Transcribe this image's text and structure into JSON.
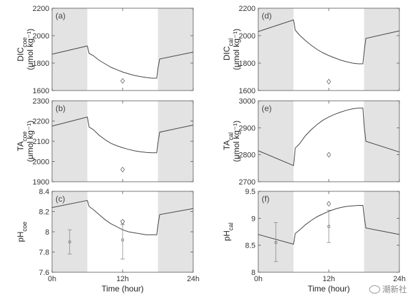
{
  "chart_data": [
    {
      "type": "line",
      "panel": "(a)",
      "ylabel_main": "DIC",
      "ylabel_sub": "coe",
      "ylabel_unit": "(μmol kg⁻¹)",
      "ylim": [
        1600,
        2200
      ],
      "yticks": [
        1600,
        1800,
        2000,
        2200
      ],
      "xlim": [
        0,
        24
      ],
      "xticks": [
        0,
        12,
        24
      ],
      "xticklabels": [
        "0h",
        "12h",
        "24h"
      ],
      "shaded": [
        [
          0,
          6
        ],
        [
          18,
          24
        ]
      ],
      "series": [
        {
          "x": [
            0,
            6,
            6.3,
            7,
            8,
            9,
            10,
            11,
            12,
            13,
            14,
            15,
            16,
            17,
            17.8,
            18,
            18.3,
            24
          ],
          "values": [
            1865,
            1925,
            1870,
            1855,
            1820,
            1795,
            1770,
            1752,
            1735,
            1722,
            1710,
            1702,
            1695,
            1690,
            1690,
            1760,
            1830,
            1880
          ]
        }
      ],
      "markers": [
        {
          "x": 12,
          "y": 1670
        }
      ]
    },
    {
      "type": "line",
      "panel": "(b)",
      "ylabel_main": "TA",
      "ylabel_sub": "coe",
      "ylabel_unit": "(μmol kg⁻¹)",
      "ylim": [
        1900,
        2300
      ],
      "yticks": [
        1900,
        2000,
        2100,
        2200,
        2300
      ],
      "xlim": [
        0,
        24
      ],
      "xticks": [
        0,
        12,
        24
      ],
      "xticklabels": [
        "0h",
        "12h",
        "24h"
      ],
      "shaded": [
        [
          0,
          6
        ],
        [
          18,
          24
        ]
      ],
      "series": [
        {
          "x": [
            0,
            6,
            6.3,
            7,
            8,
            9,
            10,
            11,
            12,
            13,
            14,
            15,
            16,
            17,
            17.8,
            18,
            18.3,
            24
          ],
          "values": [
            2175,
            2220,
            2170,
            2158,
            2130,
            2108,
            2090,
            2078,
            2068,
            2060,
            2053,
            2048,
            2045,
            2043,
            2043,
            2090,
            2145,
            2180
          ]
        }
      ],
      "markers": [
        {
          "x": 12,
          "y": 1960
        }
      ]
    },
    {
      "type": "line",
      "panel": "(c)",
      "ylabel_main": "pH",
      "ylabel_sub": "coe",
      "ylabel_unit": "",
      "ylim": [
        7.6,
        8.4
      ],
      "yticks": [
        7.6,
        7.8,
        8.0,
        8.2,
        8.4
      ],
      "yticklabels": [
        "7.6",
        "7.8",
        "8",
        "8.2",
        "8.4"
      ],
      "xlim": [
        0,
        24
      ],
      "xticks": [
        0,
        12,
        24
      ],
      "xticklabels": [
        "0h",
        "12h",
        "24h"
      ],
      "shaded": [
        [
          0,
          6
        ],
        [
          18,
          24
        ]
      ],
      "series": [
        {
          "x": [
            0,
            6,
            6.3,
            7,
            8,
            9,
            10,
            11,
            12,
            13,
            14,
            15,
            16,
            17,
            17.8,
            18,
            18.3,
            24
          ],
          "values": [
            8.24,
            8.31,
            8.25,
            8.22,
            8.17,
            8.12,
            8.08,
            8.05,
            8.02,
            8.0,
            7.99,
            7.98,
            7.97,
            7.97,
            7.97,
            8.06,
            8.17,
            8.23
          ]
        }
      ],
      "errorbars": [
        {
          "x": 3,
          "y": 7.9,
          "lo": 7.78,
          "hi": 8.02
        },
        {
          "x": 12,
          "y": 7.92,
          "lo": 7.73,
          "hi": 8.1
        },
        {
          "x": 12,
          "y": 8.09,
          "lo": 8.07,
          "hi": 8.11
        }
      ],
      "markers": [
        {
          "x": 12,
          "y": 8.1
        }
      ]
    },
    {
      "type": "line",
      "panel": "(d)",
      "ylabel_main": "DIC",
      "ylabel_sub": "cal",
      "ylabel_unit": "(μmol kg⁻¹)",
      "ylim": [
        1600,
        2200
      ],
      "yticks": [
        1600,
        1800,
        2000,
        2200
      ],
      "xlim": [
        0,
        24
      ],
      "xticks": [
        0,
        12,
        24
      ],
      "xticklabels": [
        "0h",
        "12h",
        "24h"
      ],
      "shaded": [
        [
          0,
          6
        ],
        [
          18,
          24
        ]
      ],
      "series": [
        {
          "x": [
            0,
            6,
            6.3,
            7,
            8,
            9,
            10,
            11,
            12,
            13,
            14,
            15,
            16,
            17,
            17.8,
            18,
            18.3,
            24
          ],
          "values": [
            2030,
            2115,
            2040,
            2005,
            1965,
            1930,
            1900,
            1875,
            1855,
            1838,
            1822,
            1810,
            1800,
            1795,
            1795,
            1880,
            1980,
            2035
          ]
        }
      ],
      "markers": [
        {
          "x": 12,
          "y": 1665
        }
      ]
    },
    {
      "type": "line",
      "panel": "(e)",
      "ylabel_main": "TA",
      "ylabel_sub": "cal",
      "ylabel_unit": "(μmol kg⁻¹)",
      "ylim": [
        2700,
        3000
      ],
      "yticks": [
        2700,
        2800,
        2900,
        3000
      ],
      "xlim": [
        0,
        24
      ],
      "xticks": [
        0,
        12,
        24
      ],
      "xticklabels": [
        "0h",
        "12h",
        "24h"
      ],
      "shaded": [
        [
          0,
          6
        ],
        [
          18,
          24
        ]
      ],
      "series": [
        {
          "x": [
            0,
            6,
            6.3,
            7,
            8,
            9,
            10,
            11,
            12,
            13,
            14,
            15,
            16,
            17,
            17.8,
            18,
            18.3,
            24
          ],
          "values": [
            2815,
            2760,
            2825,
            2840,
            2870,
            2893,
            2912,
            2928,
            2940,
            2950,
            2958,
            2965,
            2970,
            2973,
            2973,
            2910,
            2850,
            2810
          ]
        }
      ],
      "markers": [
        {
          "x": 12,
          "y": 2800
        }
      ]
    },
    {
      "type": "line",
      "panel": "(f)",
      "ylabel_main": "pH",
      "ylabel_sub": "cal",
      "ylabel_unit": "",
      "ylim": [
        8,
        9.5
      ],
      "yticks": [
        8,
        8.5,
        9,
        9.5
      ],
      "yticklabels": [
        "8",
        "8.5",
        "9",
        "9.5"
      ],
      "xlim": [
        0,
        24
      ],
      "xticks": [
        0,
        12,
        24
      ],
      "xticklabels": [
        "0h",
        "12h",
        "24h"
      ],
      "shaded": [
        [
          0,
          6
        ],
        [
          18,
          24
        ]
      ],
      "series": [
        {
          "x": [
            0,
            6,
            6.3,
            7,
            8,
            9,
            10,
            11,
            12,
            13,
            14,
            15,
            16,
            17,
            17.8,
            18,
            18.3,
            24
          ],
          "values": [
            8.7,
            8.52,
            8.72,
            8.78,
            8.88,
            8.96,
            9.03,
            9.08,
            9.13,
            9.17,
            9.2,
            9.22,
            9.23,
            9.24,
            9.24,
            9.05,
            8.82,
            8.7
          ]
        }
      ],
      "errorbars": [
        {
          "x": 3,
          "y": 8.55,
          "lo": 8.2,
          "hi": 8.92
        },
        {
          "x": 12,
          "y": 8.85,
          "lo": 8.55,
          "hi": 9.15
        }
      ],
      "markers": [
        {
          "x": 12,
          "y": 9.27
        }
      ]
    }
  ],
  "xlabel": "Time (hour)",
  "watermark": "潮新社"
}
